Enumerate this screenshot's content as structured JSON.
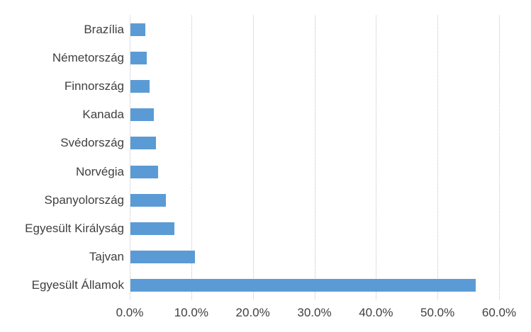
{
  "chart_data": {
    "type": "bar",
    "orientation": "horizontal",
    "title": "",
    "xlabel": "",
    "ylabel": "",
    "legend": "none",
    "grid": "vertical dotted gridlines, no axis lines, no plot border",
    "categories": [
      "Brazília",
      "Németország",
      "Finnország",
      "Kanada",
      "Svédország",
      "Norvégia",
      "Spanyolország",
      "Egyesült Királyság",
      "Tajvan",
      "Egyesült Államok"
    ],
    "values": [
      2.4,
      2.7,
      3.1,
      3.8,
      4.1,
      4.5,
      5.8,
      7.1,
      10.5,
      56.1
    ],
    "value_unit": "%",
    "xlim": [
      0,
      60
    ],
    "x_tick_step": 10,
    "x_ticks": [
      "0.0%",
      "10.0%",
      "20.0%",
      "30.0%",
      "40.0%",
      "50.0%",
      "60.0%"
    ],
    "colors": {
      "bar": "#5b9bd5",
      "gridline": "#c3c3c3",
      "text": "#404040",
      "background": "#ffffff"
    }
  }
}
